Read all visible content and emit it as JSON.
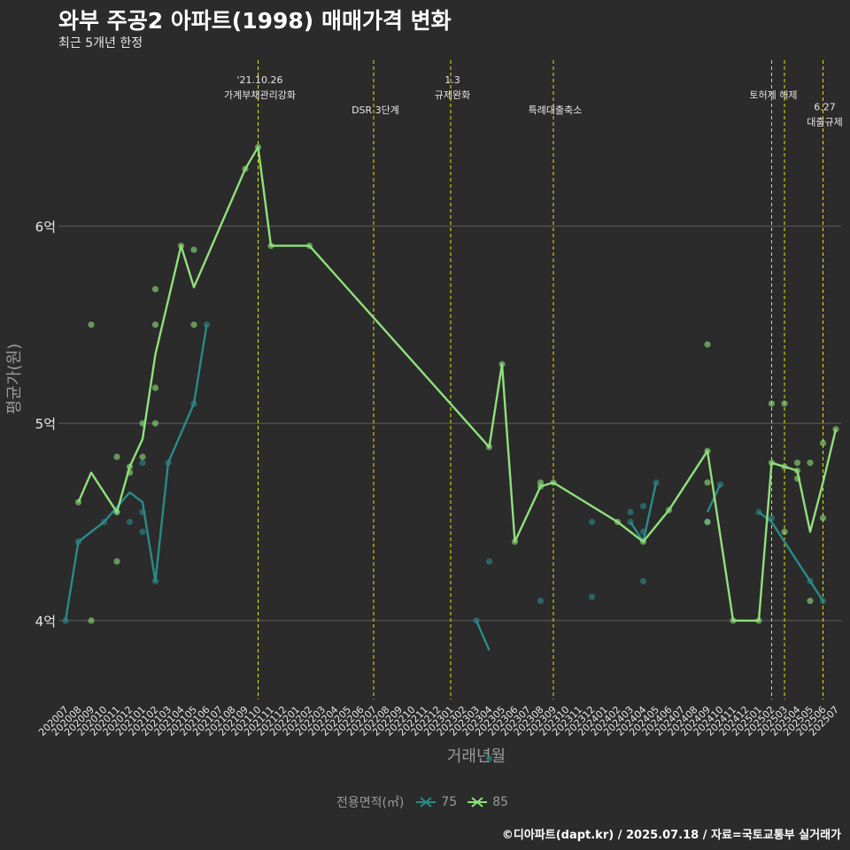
{
  "header": {
    "title": "와부 주공2 아파트(1998) 매매가격 변화",
    "subtitle": "최근 5개년 한정"
  },
  "caption": "©디아파트(dapt.kr) / 2025.07.18 / 자료=국토교통부 실거래가",
  "colors": {
    "background": "#2b2b2b",
    "gridline": "#5e5e5e",
    "series_75": "#2a8a8a",
    "series_85": "#90e07c",
    "event_line": "#e6e600",
    "axis_text": "#9a9a9a"
  },
  "chart_data": {
    "type": "line",
    "xlabel": "거래년월",
    "ylabel": "평균가(원)",
    "ylim": [
      3.6,
      6.85
    ],
    "y_ticks": [
      {
        "value": 4,
        "label": "4억"
      },
      {
        "value": 5,
        "label": "5억"
      },
      {
        "value": 6,
        "label": "6억"
      }
    ],
    "categories": [
      "202007",
      "202008",
      "202009",
      "202010",
      "202011",
      "202012",
      "202101",
      "202102",
      "202103",
      "202104",
      "202105",
      "202106",
      "202107",
      "202108",
      "202109",
      "202110",
      "202111",
      "202112",
      "202201",
      "202202",
      "202203",
      "202204",
      "202205",
      "202206",
      "202207",
      "202208",
      "202209",
      "202210",
      "202211",
      "202212",
      "202301",
      "202302",
      "202303",
      "202304",
      "202305",
      "202306",
      "202307",
      "202308",
      "202309",
      "202310",
      "202311",
      "202312",
      "202401",
      "202402",
      "202403",
      "202404",
      "202405",
      "202406",
      "202407",
      "202408",
      "202409",
      "202410",
      "202411",
      "202412",
      "202501",
      "202502",
      "202503",
      "202504",
      "202505",
      "202506",
      "202507"
    ],
    "legend_title": "전용면적(㎡)",
    "series": [
      {
        "name": "75",
        "line": [
          [
            0,
            4.0
          ],
          [
            1,
            4.4
          ],
          [
            3,
            4.5
          ],
          [
            5,
            4.65
          ],
          [
            6,
            4.6
          ],
          [
            7,
            4.2
          ],
          [
            8,
            4.8
          ],
          [
            10,
            5.1
          ],
          [
            11,
            5.5
          ],
          null,
          [
            32,
            4.0
          ],
          [
            33,
            3.85
          ],
          null,
          [
            44,
            4.5
          ],
          [
            45,
            4.4
          ],
          [
            46,
            4.7
          ],
          null,
          [
            50,
            4.55
          ],
          [
            51,
            4.69
          ],
          null,
          [
            54,
            4.55
          ],
          [
            55,
            4.5
          ],
          [
            58,
            4.2
          ],
          [
            59,
            4.1
          ]
        ],
        "points": [
          [
            0,
            4.0
          ],
          [
            1,
            4.4
          ],
          [
            3,
            4.5
          ],
          [
            4,
            4.55
          ],
          [
            5,
            4.5
          ],
          [
            6,
            4.8
          ],
          [
            6,
            4.55
          ],
          [
            6,
            4.45
          ],
          [
            7,
            4.2
          ],
          [
            8,
            4.8
          ],
          [
            10,
            5.1
          ],
          [
            11,
            5.5
          ],
          [
            32,
            4.0
          ],
          [
            33,
            4.3
          ],
          [
            33,
            3.3
          ],
          [
            37,
            4.1
          ],
          [
            41,
            4.5
          ],
          [
            41,
            4.12
          ],
          [
            44,
            4.55
          ],
          [
            44,
            4.5
          ],
          [
            45,
            4.45
          ],
          [
            45,
            4.58
          ],
          [
            45,
            4.2
          ],
          [
            46,
            4.7
          ],
          [
            50,
            4.5
          ],
          [
            51,
            4.69
          ],
          [
            54,
            4.55
          ],
          [
            55,
            4.52
          ],
          [
            58,
            4.2
          ],
          [
            59,
            4.1
          ]
        ]
      },
      {
        "name": "85",
        "line": [
          [
            1,
            4.6
          ],
          [
            2,
            4.75
          ],
          [
            4,
            4.55
          ],
          [
            5,
            4.78
          ],
          [
            6,
            4.92
          ],
          [
            7,
            5.35
          ],
          [
            9,
            5.9
          ],
          [
            10,
            5.69
          ],
          [
            14,
            6.29
          ],
          [
            15,
            6.4
          ],
          [
            16,
            5.9
          ],
          [
            19,
            5.9
          ],
          [
            33,
            4.88
          ],
          [
            34,
            5.3
          ],
          [
            35,
            4.4
          ],
          [
            37,
            4.68
          ],
          [
            38,
            4.7
          ],
          [
            43,
            4.5
          ],
          [
            45,
            4.4
          ],
          [
            47,
            4.56
          ],
          [
            50,
            4.86
          ],
          [
            52,
            4.0
          ],
          [
            54,
            4.0
          ],
          [
            55,
            4.8
          ],
          [
            56,
            4.78
          ],
          [
            57,
            4.76
          ],
          [
            58,
            4.45
          ],
          [
            59,
            4.7
          ],
          [
            60,
            4.97
          ]
        ],
        "points": [
          [
            1,
            4.6
          ],
          [
            2,
            4.0
          ],
          [
            2,
            5.5
          ],
          [
            4,
            4.55
          ],
          [
            4,
            4.3
          ],
          [
            4,
            4.83
          ],
          [
            5,
            4.75
          ],
          [
            5,
            4.78
          ],
          [
            6,
            5.0
          ],
          [
            6,
            4.83
          ],
          [
            7,
            5.5
          ],
          [
            7,
            5.0
          ],
          [
            7,
            5.18
          ],
          [
            7,
            5.68
          ],
          [
            9,
            5.9
          ],
          [
            10,
            5.88
          ],
          [
            10,
            5.5
          ],
          [
            14,
            6.29
          ],
          [
            15,
            6.4
          ],
          [
            16,
            5.9
          ],
          [
            19,
            5.9
          ],
          [
            33,
            4.88
          ],
          [
            34,
            5.3
          ],
          [
            35,
            4.4
          ],
          [
            37,
            4.68
          ],
          [
            37,
            4.7
          ],
          [
            38,
            4.7
          ],
          [
            43,
            4.5
          ],
          [
            45,
            4.4
          ],
          [
            47,
            4.56
          ],
          [
            50,
            4.86
          ],
          [
            50,
            5.4
          ],
          [
            50,
            4.7
          ],
          [
            50,
            4.5
          ],
          [
            52,
            4.0
          ],
          [
            54,
            4.0
          ],
          [
            55,
            4.8
          ],
          [
            55,
            5.1
          ],
          [
            56,
            5.1
          ],
          [
            56,
            4.78
          ],
          [
            56,
            4.45
          ],
          [
            57,
            4.8
          ],
          [
            57,
            4.76
          ],
          [
            57,
            4.72
          ],
          [
            58,
            4.8
          ],
          [
            58,
            4.1
          ],
          [
            59,
            4.9
          ],
          [
            59,
            4.52
          ],
          [
            60,
            4.97
          ]
        ]
      }
    ],
    "events": [
      {
        "x": 15,
        "lines": [
          "'21.10.26",
          "가계부채관리강화"
        ],
        "level": 0
      },
      {
        "x": 24,
        "lines": [
          "DSR 3단계"
        ],
        "level": 2
      },
      {
        "x": 30,
        "lines": [
          "1.3",
          "규제완화"
        ],
        "level": 0
      },
      {
        "x": 38,
        "lines": [
          "특례대출축소"
        ],
        "level": 2
      },
      {
        "x": 55,
        "lines": [
          "토허제 해제"
        ],
        "level": 1
      },
      {
        "x": 56,
        "lines": [],
        "level": 1
      },
      {
        "x": 59,
        "lines": [
          "6.27",
          "대출규제"
        ],
        "level": 1.8
      }
    ]
  }
}
